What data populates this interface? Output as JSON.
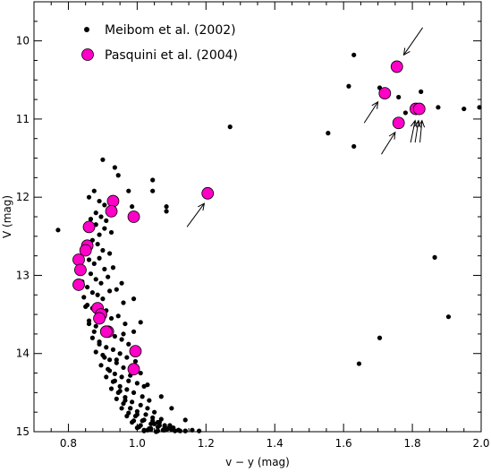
{
  "chart_data": {
    "type": "scatter",
    "title": "",
    "xlabel": "v − y (mag)",
    "ylabel": "V (mag)",
    "xlim": [
      0.7,
      2.0
    ],
    "ylim": [
      15.0,
      9.5
    ],
    "y_inverted": true,
    "xticks": [
      0.8,
      1.0,
      1.2,
      1.4,
      1.6,
      1.8,
      2.0
    ],
    "xtick_labels": [
      "0.8",
      "1.0",
      "1.2",
      "1.4",
      "1.6",
      "1.8",
      "2.0"
    ],
    "yticks": [
      10,
      11,
      12,
      13,
      14,
      15
    ],
    "ytick_labels": [
      "10",
      "11",
      "12",
      "13",
      "14",
      "15"
    ],
    "grid": false,
    "legend_position": "top-left",
    "series": [
      {
        "name": "Meibom et al. (2002)",
        "marker": "small-dot",
        "color": "#000000",
        "x": [
          0.77,
          0.9,
          0.935,
          0.945,
          0.975,
          0.985,
          1.045,
          1.045,
          1.085,
          1.085,
          1.27,
          1.555,
          1.615,
          1.63,
          1.63,
          1.705,
          1.76,
          1.78,
          1.825,
          1.875,
          1.95,
          1.995,
          1.865,
          1.905,
          1.705,
          1.645,
          0.86,
          0.875,
          0.89,
          0.905,
          0.88,
          0.865,
          0.88,
          0.895,
          0.905,
          0.91,
          0.89,
          0.925,
          0.87,
          0.855,
          0.885,
          0.9,
          0.92,
          0.86,
          0.875,
          0.89,
          0.905,
          0.845,
          0.865,
          0.88,
          0.895,
          0.915,
          0.93,
          0.855,
          0.87,
          0.885,
          0.9,
          0.92,
          0.94,
          0.96,
          0.84,
          0.855,
          0.87,
          0.89,
          0.91,
          0.925,
          0.945,
          0.965,
          0.845,
          0.86,
          0.88,
          0.9,
          0.915,
          0.935,
          0.955,
          0.975,
          0.99,
          0.85,
          0.87,
          0.89,
          0.91,
          0.93,
          0.95,
          0.97,
          0.995,
          0.86,
          0.88,
          0.9,
          0.92,
          0.94,
          0.96,
          0.985,
          1.01,
          0.875,
          0.895,
          0.915,
          0.935,
          0.955,
          0.975,
          1.0,
          1.02,
          0.89,
          0.91,
          0.93,
          0.95,
          0.97,
          0.99,
          1.015,
          1.035,
          0.905,
          0.925,
          0.945,
          0.965,
          0.985,
          1.01,
          1.03,
          1.05,
          0.92,
          0.94,
          0.96,
          0.98,
          1.0,
          1.025,
          1.045,
          1.065,
          0.935,
          0.955,
          0.975,
          0.995,
          1.015,
          1.04,
          1.06,
          1.08,
          0.95,
          0.97,
          0.99,
          1.01,
          1.035,
          1.055,
          1.075,
          1.095,
          0.965,
          0.985,
          1.005,
          1.03,
          1.05,
          1.07,
          1.09,
          1.11,
          0.98,
          1.0,
          1.02,
          1.045,
          1.065,
          1.085,
          1.105,
          1.125,
          1.0,
          1.02,
          1.04,
          1.06,
          1.08,
          1.1,
          1.12,
          1.14,
          1.02,
          1.04,
          1.06,
          1.08,
          1.1,
          1.12,
          1.14,
          1.16,
          1.18,
          0.955,
          0.99,
          1.01,
          0.96,
          0.94,
          0.98,
          1.03,
          1.07,
          1.1,
          1.14
        ],
        "y": [
          12.42,
          11.52,
          11.62,
          11.72,
          11.92,
          12.12,
          11.78,
          11.92,
          12.12,
          12.18,
          11.1,
          11.18,
          10.58,
          10.18,
          11.35,
          10.6,
          10.72,
          10.92,
          10.65,
          10.85,
          10.87,
          10.85,
          12.77,
          13.53,
          13.8,
          14.13,
          12.0,
          11.92,
          12.05,
          12.1,
          12.2,
          12.28,
          12.35,
          12.25,
          12.4,
          12.3,
          12.48,
          12.45,
          12.55,
          12.62,
          12.6,
          12.68,
          12.72,
          12.8,
          12.85,
          12.78,
          12.92,
          12.95,
          12.98,
          13.05,
          13.1,
          13.02,
          12.9,
          13.15,
          13.22,
          13.25,
          13.3,
          13.2,
          13.18,
          13.35,
          13.08,
          13.38,
          13.42,
          13.48,
          13.45,
          13.55,
          13.52,
          13.62,
          13.28,
          13.58,
          13.65,
          13.7,
          13.75,
          13.78,
          13.82,
          13.88,
          13.72,
          13.4,
          13.8,
          13.85,
          13.92,
          13.95,
          14.0,
          14.05,
          14.1,
          13.62,
          13.98,
          14.02,
          14.08,
          14.12,
          14.18,
          14.22,
          14.25,
          13.72,
          14.15,
          14.2,
          14.26,
          14.3,
          14.35,
          14.38,
          14.42,
          13.88,
          14.3,
          14.36,
          14.42,
          14.46,
          14.5,
          14.55,
          14.6,
          14.05,
          14.45,
          14.5,
          14.56,
          14.62,
          14.66,
          14.7,
          14.75,
          14.22,
          14.58,
          14.64,
          14.7,
          14.74,
          14.78,
          14.82,
          14.88,
          14.35,
          14.7,
          14.76,
          14.8,
          14.86,
          14.9,
          14.94,
          14.98,
          14.48,
          14.8,
          14.86,
          14.92,
          14.96,
          15.0,
          14.98,
          14.92,
          14.6,
          14.88,
          14.94,
          14.98,
          14.9,
          14.84,
          14.96,
          14.99,
          14.7,
          14.95,
          14.98,
          14.86,
          14.92,
          14.97,
          14.95,
          14.99,
          14.78,
          14.99,
          14.96,
          14.88,
          14.92,
          14.96,
          14.98,
          14.99,
          14.85,
          14.97,
          14.99,
          14.94,
          14.97,
          14.98,
          14.99,
          14.98,
          14.99,
          13.1,
          13.3,
          13.6,
          13.75,
          14.08,
          14.28,
          14.4,
          14.55,
          14.7,
          14.85
        ]
      },
      {
        "name": "Pasquini et al. (2004)",
        "marker": "large-circle",
        "color": "#ff00c8",
        "x": [
          1.755,
          1.72,
          1.76,
          1.81,
          1.82,
          1.205,
          0.93,
          0.925,
          0.99,
          0.86,
          0.855,
          0.85,
          0.83,
          0.835,
          0.83,
          0.885,
          0.895,
          0.89,
          0.915,
          0.91,
          0.995,
          0.99
        ],
        "y": [
          10.33,
          10.67,
          11.05,
          10.87,
          10.87,
          11.95,
          12.05,
          12.18,
          12.25,
          12.38,
          12.62,
          12.68,
          12.8,
          12.93,
          13.12,
          13.42,
          13.5,
          13.55,
          13.72,
          13.72,
          13.97,
          14.2
        ]
      }
    ],
    "annotations": [
      {
        "type": "arrow",
        "from": [
          1.145,
          12.38
        ],
        "to": [
          1.195,
          12.08
        ],
        "points_to": [
          1.205,
          11.95
        ]
      },
      {
        "type": "arrow",
        "from": [
          1.83,
          9.83
        ],
        "to": [
          1.775,
          10.18
        ],
        "points_to": [
          1.755,
          10.33
        ]
      },
      {
        "type": "arrow",
        "from": [
          1.66,
          11.05
        ],
        "to": [
          1.7,
          10.78
        ],
        "points_to": [
          1.72,
          10.67
        ]
      },
      {
        "type": "arrow",
        "from": [
          1.71,
          11.45
        ],
        "to": [
          1.75,
          11.17
        ],
        "points_to": [
          1.76,
          11.05
        ]
      },
      {
        "type": "arrow",
        "from": [
          1.795,
          11.3
        ],
        "to": [
          1.808,
          11.02
        ],
        "points_to": [
          1.81,
          10.87
        ]
      },
      {
        "type": "arrow",
        "from": [
          1.808,
          11.3
        ],
        "to": [
          1.818,
          11.02
        ],
        "points_to": [
          1.815,
          10.87
        ]
      },
      {
        "type": "arrow",
        "from": [
          1.822,
          11.3
        ],
        "to": [
          1.828,
          11.02
        ],
        "points_to": [
          1.82,
          10.87
        ]
      }
    ]
  }
}
